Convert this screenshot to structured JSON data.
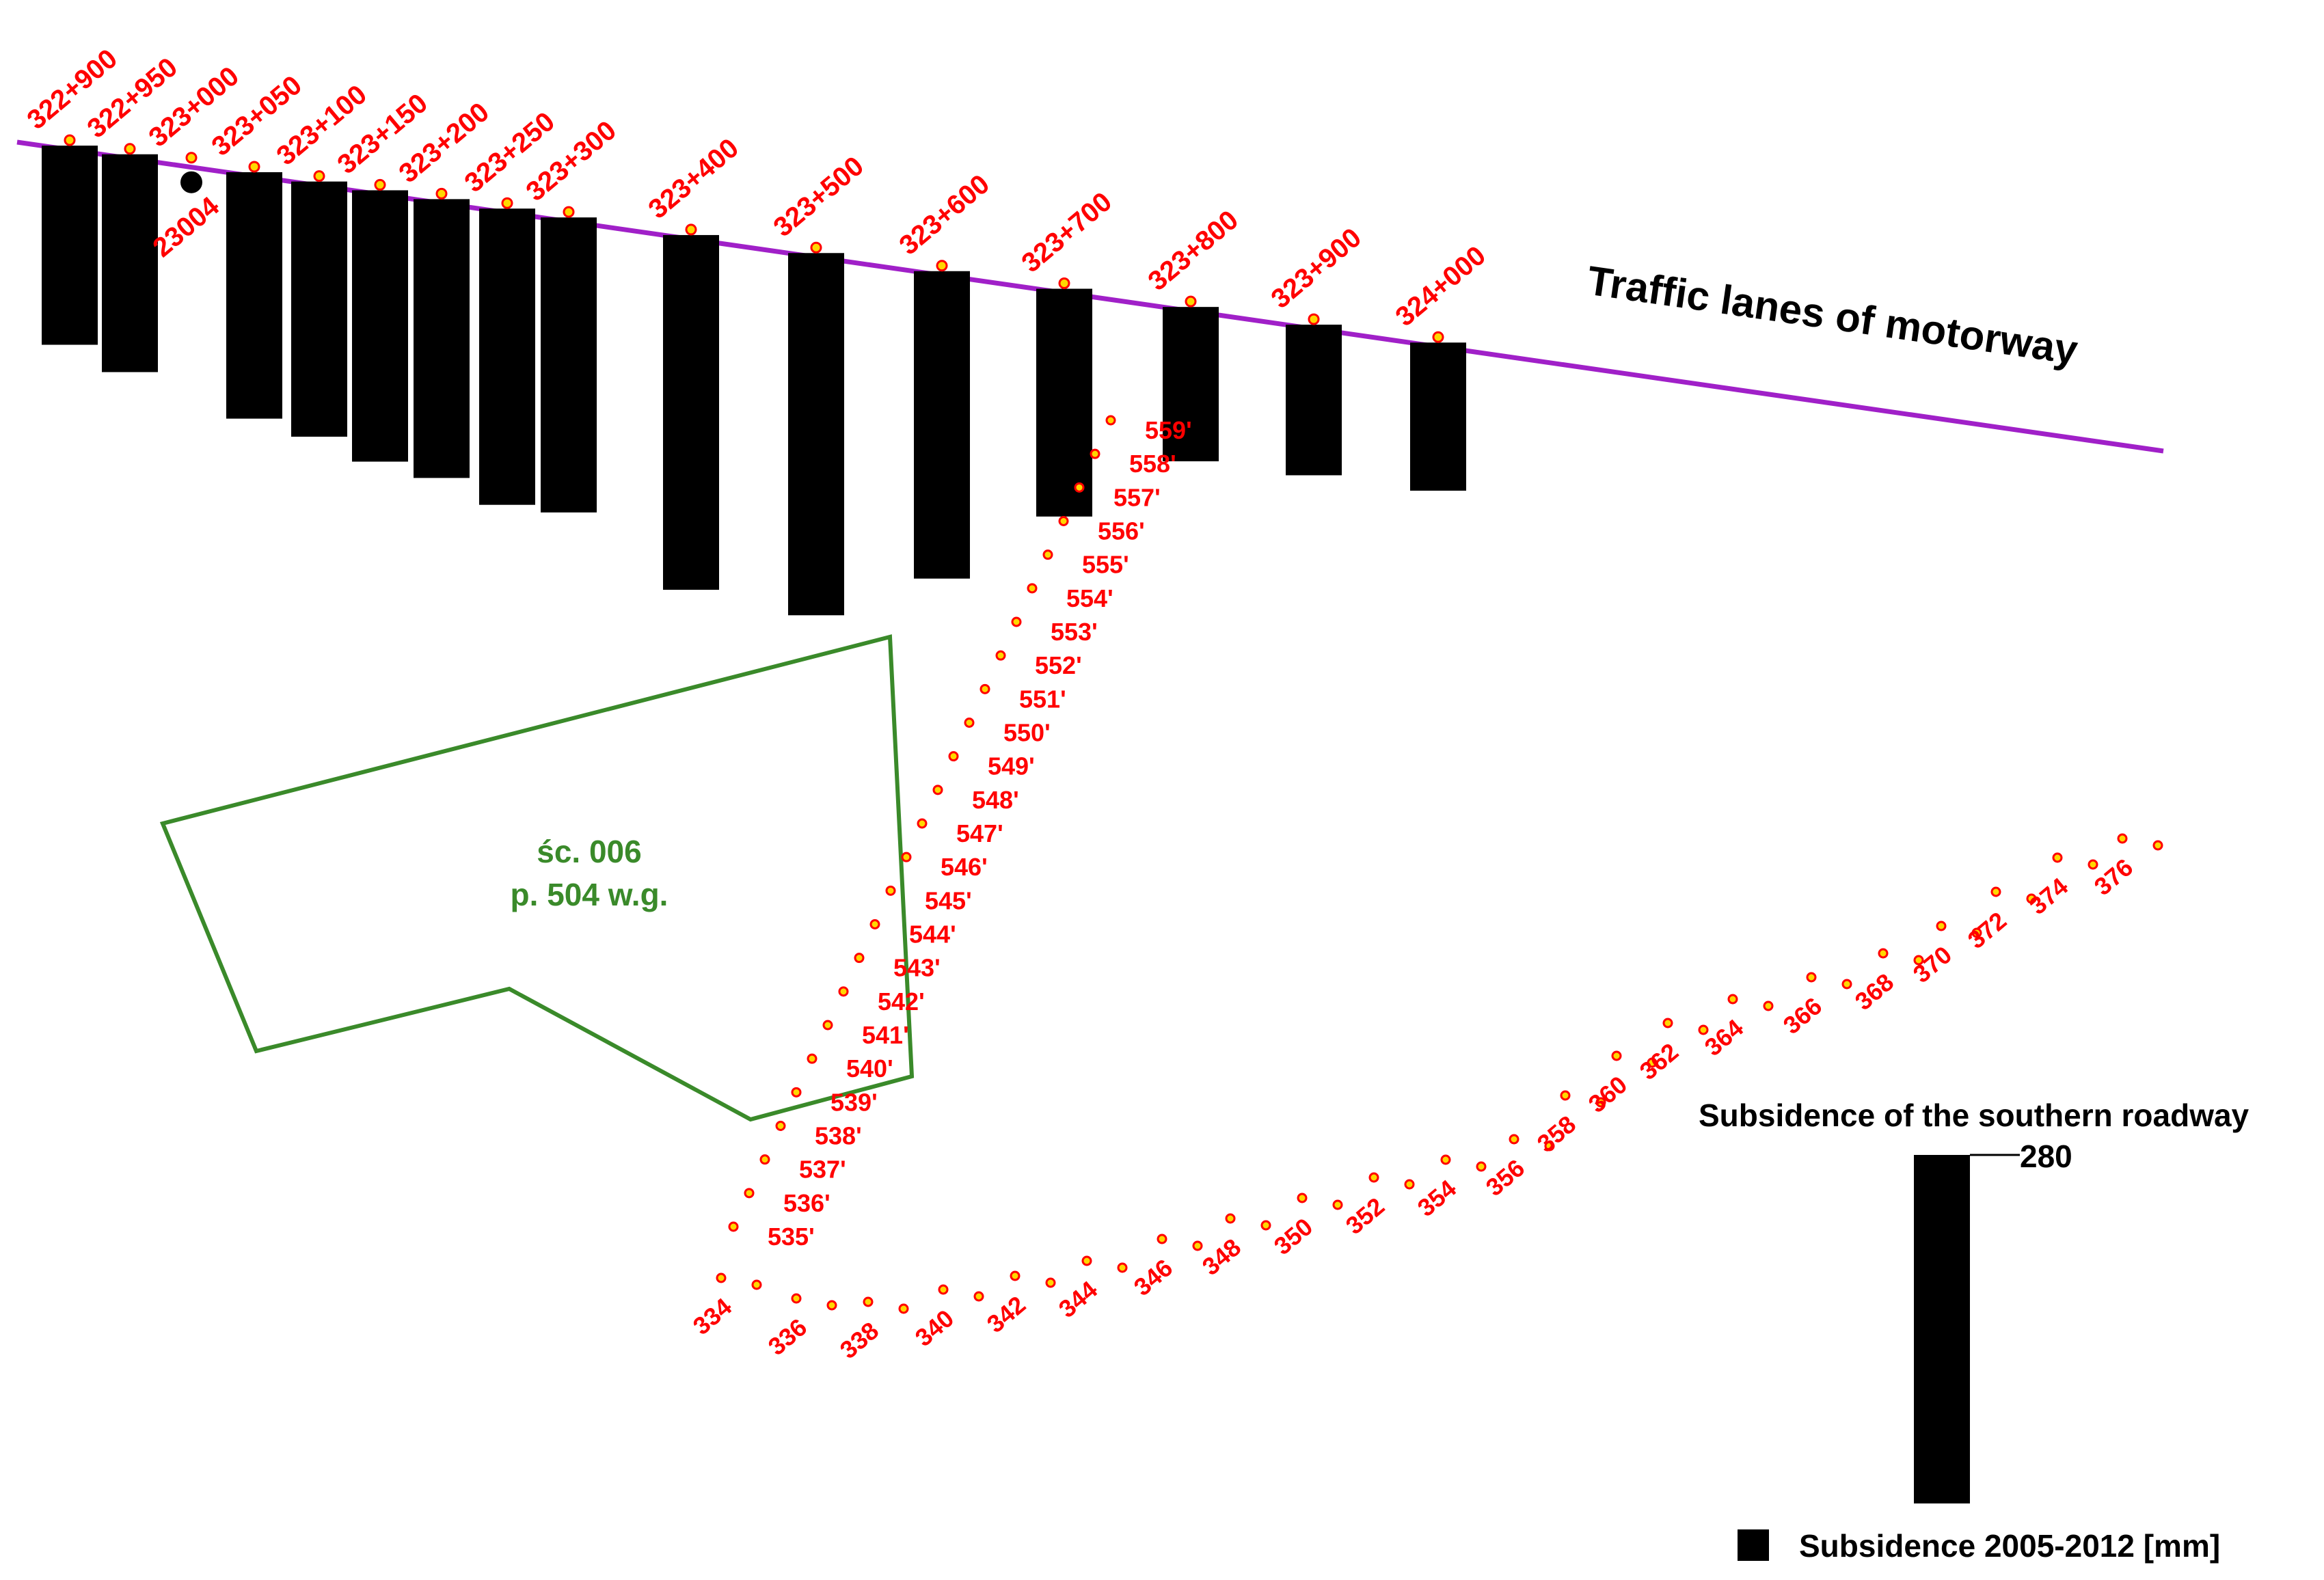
{
  "colors": {
    "motorway": "#a020c8",
    "bars": "#000000",
    "labels": "#ff0000",
    "benchmark_fill": "#ffd700",
    "benchmark_stroke": "#ff0000",
    "parcel": "#3a8a2a"
  },
  "motorway_label": "Traffic lanes of motorway",
  "extra_label": "23004",
  "chainage_labels": [
    "322+900",
    "322+950",
    "323+000",
    "323+050",
    "323+100",
    "323+150",
    "323+200",
    "323+250",
    "323+300",
    "323+400",
    "323+500",
    "323+600",
    "323+700",
    "323+800",
    "323+900",
    "324+000"
  ],
  "parcel": {
    "line1": "śc. 006",
    "line2": "p. 504 w.g."
  },
  "diagonal_points": [
    "535'",
    "536'",
    "537'",
    "538'",
    "539'",
    "540'",
    "541'",
    "542'",
    "543'",
    "544'",
    "545'",
    "546'",
    "547'",
    "548'",
    "549'",
    "550'",
    "551'",
    "552'",
    "553'",
    "554'",
    "555'",
    "556'",
    "557'",
    "558'",
    "559'"
  ],
  "curve_points": [
    "334",
    "336",
    "338",
    "340",
    "342",
    "344",
    "346",
    "348",
    "350",
    "352",
    "354",
    "356",
    "358",
    "360",
    "362",
    "364",
    "366",
    "368",
    "370",
    "372",
    "374",
    "376"
  ],
  "legend": {
    "title": "Subsidence of the southern roadway",
    "scale_value": "280",
    "item_label": "Subsidence 2005-2012 [mm]"
  },
  "chart_data": {
    "type": "bar",
    "categories": [
      "322+900",
      "322+950",
      "323+050",
      "323+100",
      "323+150",
      "323+200",
      "323+250",
      "323+300",
      "323+400",
      "323+500",
      "323+600",
      "323+700",
      "323+800",
      "323+900",
      "324+000"
    ],
    "values": [
      160,
      175,
      198,
      205,
      218,
      224,
      238,
      237,
      285,
      291,
      247,
      183,
      124,
      121,
      119
    ],
    "scale_reference": 280,
    "ylabel": "Subsidence 2005-2012 [mm]"
  }
}
